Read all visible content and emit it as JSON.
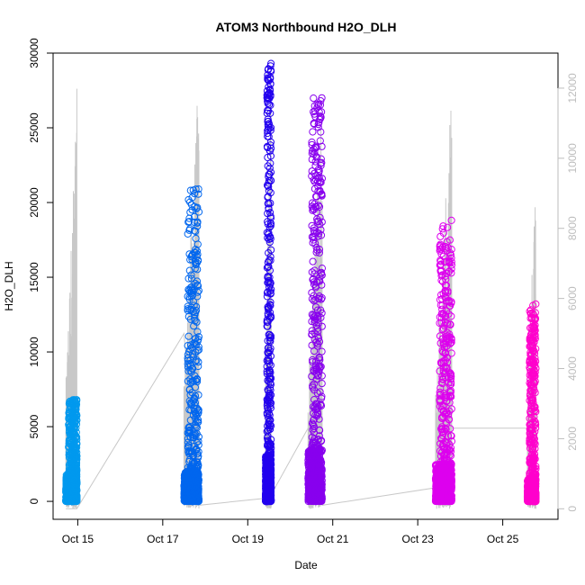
{
  "chart_data": {
    "type": "scatter",
    "title": "ATOM3 Northbound H2O_DLH",
    "xlabel": "Date",
    "ylabel": "H2O_DLH",
    "x_ticks": [
      "Oct 15",
      "Oct 17",
      "Oct 19",
      "Oct 21",
      "Oct 23",
      "Oct 25"
    ],
    "x_tick_days": [
      15,
      17,
      19,
      21,
      23,
      25
    ],
    "xlim": [
      14.42,
      26.3
    ],
    "ylim_left": [
      -1200,
      30000
    ],
    "y_ticks_left": [
      "0",
      "5000",
      "10000",
      "15000",
      "20000",
      "25000",
      "30000"
    ],
    "y_tick_values_left": [
      0,
      5000,
      10000,
      15000,
      20000,
      25000,
      30000
    ],
    "ylim_right": [
      -300,
      13000
    ],
    "y_ticks_right": [
      "0",
      "2000",
      "4000",
      "6000",
      "8000",
      "10000",
      "12000"
    ],
    "y_tick_values_right": [
      0,
      2000,
      4000,
      6000,
      8000,
      10000,
      12000
    ],
    "grid": false,
    "flights": [
      {
        "x_start": 14.72,
        "x_end": 14.98,
        "color": "#0099ee",
        "max_value": 6800,
        "dense_top": 1800,
        "gray_max": 12000,
        "track_start": 0,
        "track_end": 0
      },
      {
        "x_start": 17.5,
        "x_end": 17.85,
        "color": "#0066ee",
        "max_value": 20900,
        "dense_top": 2000,
        "gray_max": 12600,
        "track_start": 5000,
        "track_end": 100
      },
      {
        "x_start": 19.42,
        "x_end": 19.55,
        "color": "#2200ee",
        "max_value": 29300,
        "dense_top": 3000,
        "gray_max": 12700,
        "track_start": 300,
        "track_end": 400
      },
      {
        "x_start": 20.42,
        "x_end": 20.75,
        "color": "#8800ee",
        "max_value": 27000,
        "dense_top": 3500,
        "gray_max": 12000,
        "track_start": 2300,
        "track_end": 100
      },
      {
        "x_start": 23.42,
        "x_end": 23.8,
        "color": "#dd00ee",
        "max_value": 18800,
        "dense_top": 2500,
        "gray_max": 12000,
        "track_start": 600,
        "track_end": 2300
      },
      {
        "x_start": 25.58,
        "x_end": 25.78,
        "color": "#ff00cc",
        "max_value": 13200,
        "dense_top": 1500,
        "gray_max": 10000,
        "track_start": 2300,
        "track_end": 0
      }
    ]
  }
}
